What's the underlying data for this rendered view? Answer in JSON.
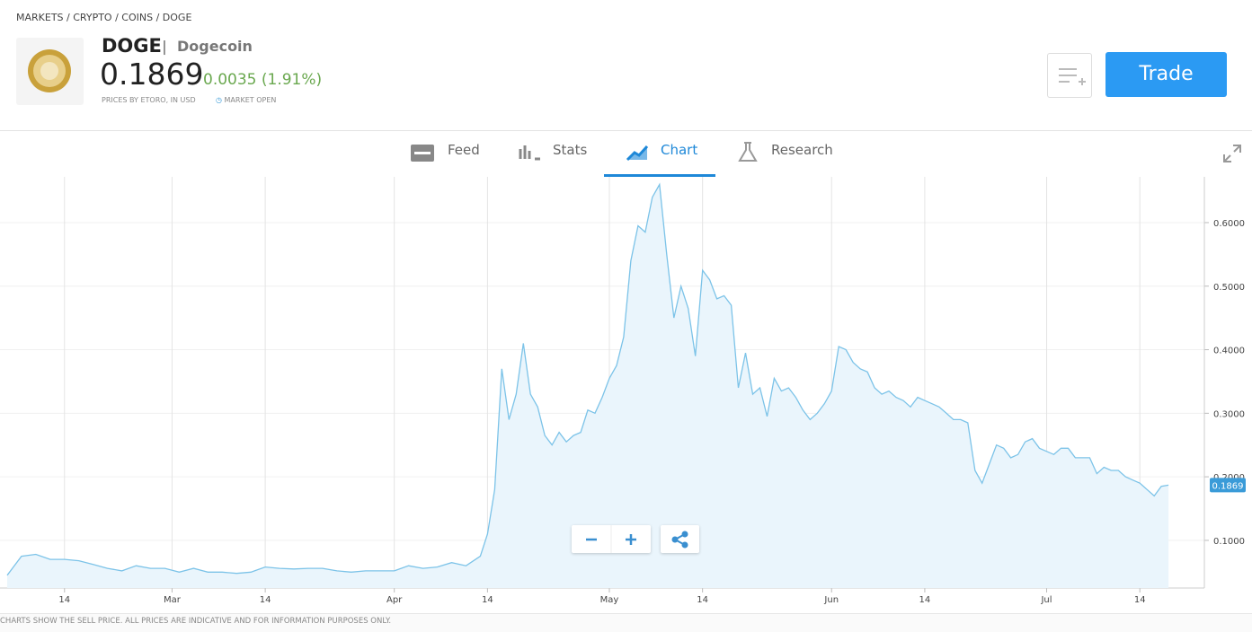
{
  "header": {
    "breadcrumb": [
      "MARKETS",
      "CRYPTO",
      "COINS",
      "DOGE"
    ],
    "ticker": "DOGE",
    "name": "Dogecoin",
    "price": "0.1869",
    "change": "0.0035 (1.91%)",
    "source_note": "PRICES BY ETORO, IN USD",
    "market_status": "MARKET OPEN",
    "trade_button": "Trade"
  },
  "tabs": [
    "Feed",
    "Stats",
    "Chart",
    "Research"
  ],
  "footer_note": "CHARTS SHOW THE SELL PRICE. ALL PRICES ARE INDICATIVE AND FOR INFORMATION PURPOSES ONLY.",
  "chart_data": {
    "type": "area",
    "color": "#7cc3e8",
    "fill_color": "#eaf5fc",
    "grid": true,
    "x": [
      37,
      39,
      41,
      43,
      45,
      47,
      49,
      51,
      53,
      55,
      57,
      59,
      61,
      63,
      65,
      67,
      69,
      71,
      73,
      75,
      77,
      79,
      81,
      83,
      85,
      87,
      89,
      91,
      93,
      95,
      97,
      99,
      101,
      103,
      104,
      105,
      106,
      107,
      108,
      109,
      110,
      111,
      112,
      113,
      114,
      115,
      116,
      117,
      118,
      119,
      120,
      121,
      122,
      123,
      124,
      125,
      126,
      127,
      128,
      129,
      130,
      131,
      132,
      133,
      134,
      135,
      136,
      137,
      138,
      139,
      140,
      141,
      142,
      143,
      144,
      145,
      146,
      147,
      148,
      149,
      150,
      151,
      152,
      153,
      154,
      155,
      156,
      157,
      158,
      159,
      160,
      161,
      162,
      163,
      164,
      165,
      166,
      167,
      168,
      169,
      170,
      171,
      172,
      173,
      174,
      175,
      176,
      177,
      178,
      179,
      180,
      181,
      182,
      183,
      184,
      185,
      186,
      187,
      188,
      189,
      190,
      191,
      192,
      193,
      194,
      195,
      196,
      197,
      198,
      199
    ],
    "values": [
      0.045,
      0.075,
      0.078,
      0.07,
      0.07,
      0.068,
      0.062,
      0.056,
      0.052,
      0.06,
      0.056,
      0.056,
      0.05,
      0.056,
      0.05,
      0.05,
      0.048,
      0.05,
      0.058,
      0.056,
      0.055,
      0.056,
      0.056,
      0.052,
      0.05,
      0.052,
      0.052,
      0.052,
      0.06,
      0.056,
      0.058,
      0.065,
      0.06,
      0.075,
      0.11,
      0.18,
      0.37,
      0.29,
      0.33,
      0.41,
      0.33,
      0.31,
      0.265,
      0.25,
      0.27,
      0.255,
      0.265,
      0.27,
      0.305,
      0.3,
      0.325,
      0.355,
      0.375,
      0.42,
      0.54,
      0.595,
      0.585,
      0.64,
      0.66,
      0.55,
      0.45,
      0.5,
      0.465,
      0.39,
      0.525,
      0.51,
      0.48,
      0.485,
      0.47,
      0.34,
      0.395,
      0.33,
      0.34,
      0.295,
      0.355,
      0.335,
      0.34,
      0.325,
      0.305,
      0.29,
      0.3,
      0.315,
      0.335,
      0.405,
      0.4,
      0.38,
      0.37,
      0.365,
      0.34,
      0.33,
      0.335,
      0.325,
      0.32,
      0.31,
      0.325,
      0.32,
      0.315,
      0.31,
      0.3,
      0.29,
      0.29,
      0.285,
      0.21,
      0.19,
      0.22,
      0.25,
      0.245,
      0.23,
      0.235,
      0.255,
      0.26,
      0.245,
      0.24,
      0.235,
      0.245,
      0.245,
      0.23,
      0.23,
      0.23,
      0.205,
      0.215,
      0.21,
      0.21,
      0.2,
      0.195,
      0.19,
      0.18,
      0.17,
      0.185,
      0.1869
    ],
    "xlim": [
      36,
      204
    ],
    "ylim": [
      0.025,
      0.672
    ],
    "xticks": [
      {
        "value": 45,
        "label": "14"
      },
      {
        "value": 60,
        "label": "Mar"
      },
      {
        "value": 73,
        "label": "14"
      },
      {
        "value": 91,
        "label": "Apr"
      },
      {
        "value": 104,
        "label": "14"
      },
      {
        "value": 121,
        "label": "May"
      },
      {
        "value": 134,
        "label": "14"
      },
      {
        "value": 152,
        "label": "Jun"
      },
      {
        "value": 165,
        "label": "14"
      },
      {
        "value": 182,
        "label": "Jul"
      },
      {
        "value": 195,
        "label": "14"
      }
    ],
    "yticks": [
      {
        "value": 0.1,
        "label": "0.1000"
      },
      {
        "value": 0.2,
        "label": "0.2000"
      },
      {
        "value": 0.3,
        "label": "0.3000"
      },
      {
        "value": 0.4,
        "label": "0.4000"
      },
      {
        "value": 0.5,
        "label": "0.5000"
      },
      {
        "value": 0.6,
        "label": "0.6000"
      }
    ],
    "last_price": 0.1869
  }
}
